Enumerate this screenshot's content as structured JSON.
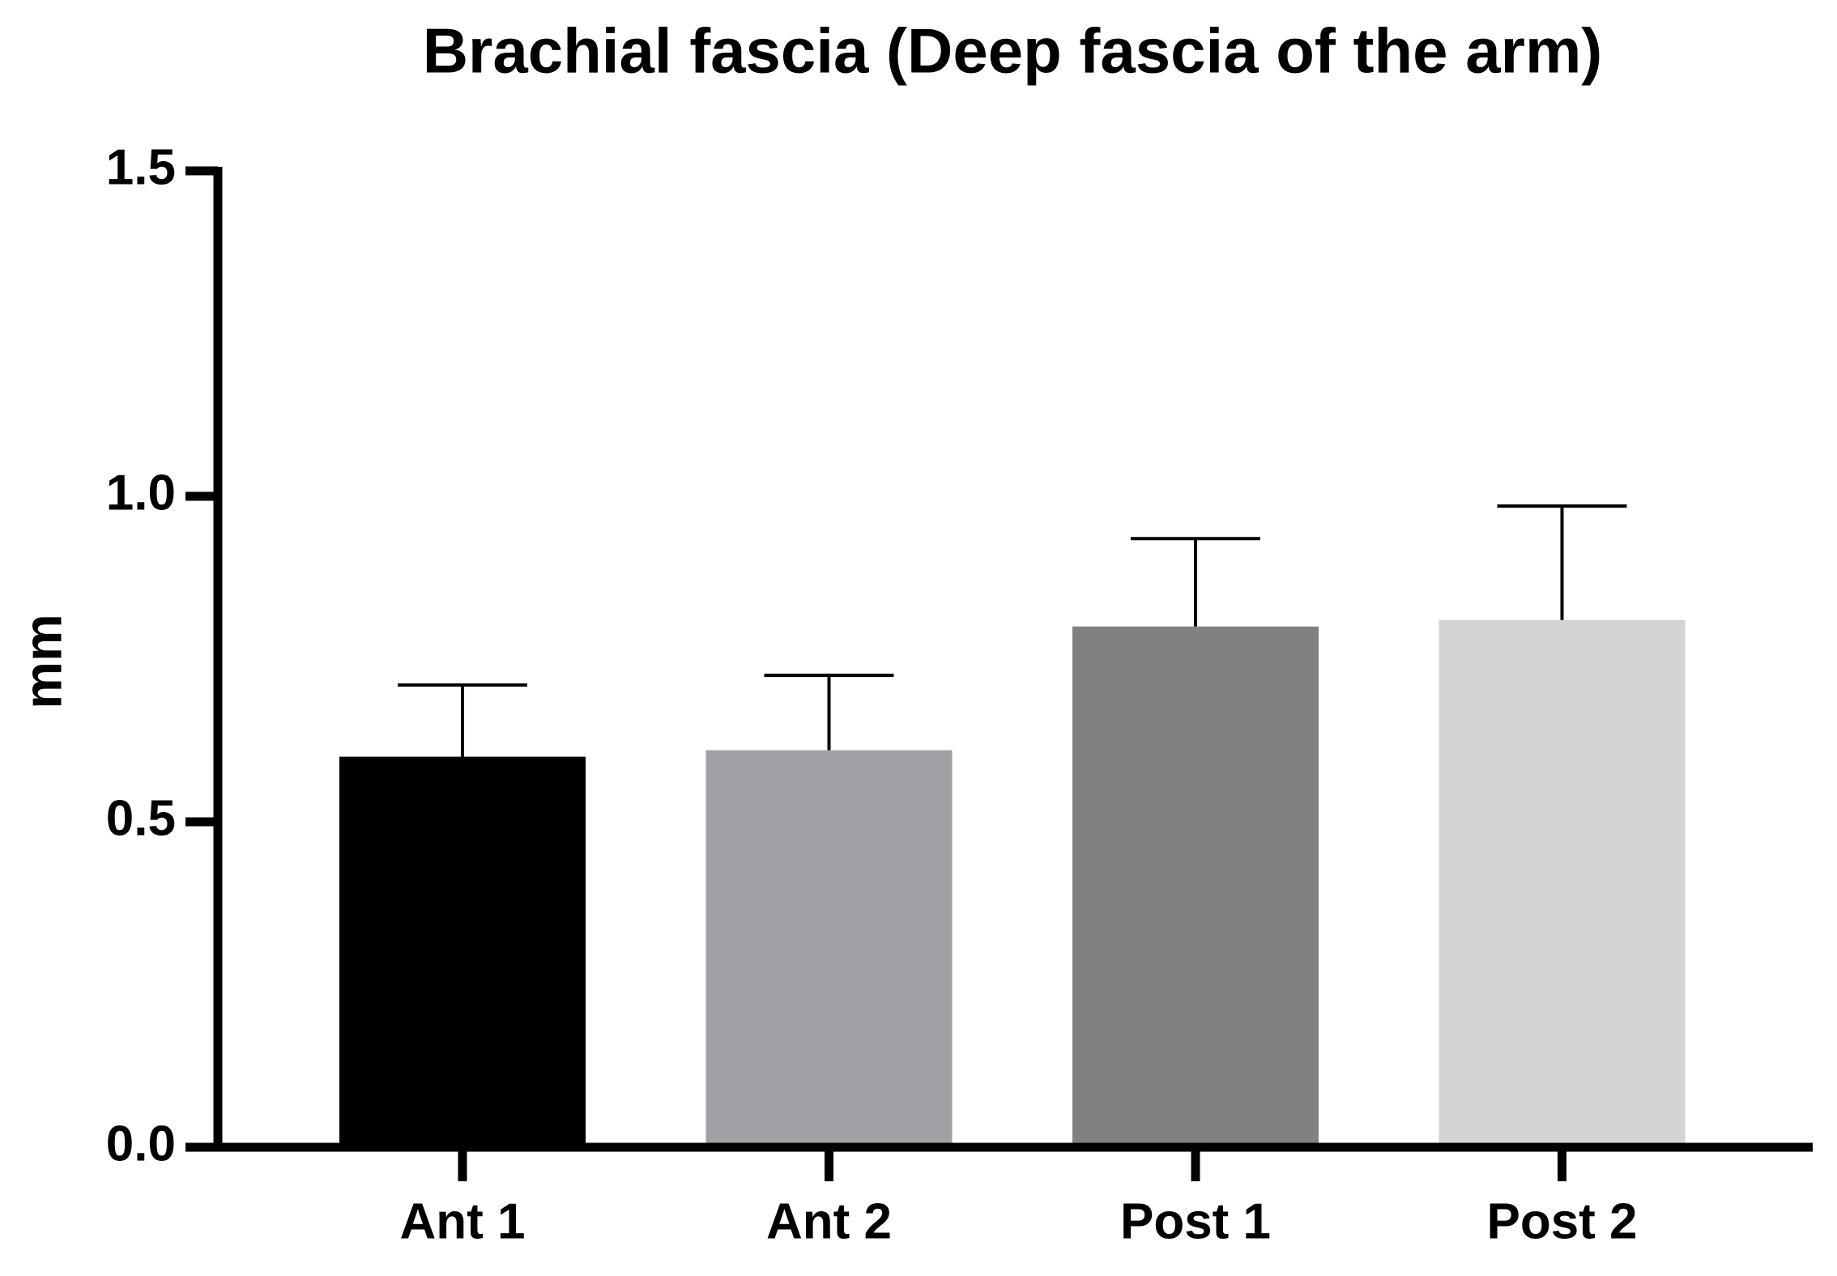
{
  "chart_data": {
    "type": "bar",
    "title": "Brachial fascia (Deep fascia of the arm)",
    "y_label": "mm",
    "categories": [
      "Ant 1",
      "Ant 2",
      "Post 1",
      "Post 2"
    ],
    "values": [
      0.6,
      0.61,
      0.8,
      0.81
    ],
    "errors": [
      0.11,
      0.115,
      0.135,
      0.175
    ],
    "colors": [
      "#000000",
      "#a1a0a5",
      "#818181",
      "#d4d4d4"
    ],
    "ylim": [
      0,
      1.5
    ],
    "yticks": [
      {
        "value": 0,
        "label": "0.0"
      },
      0.5,
      {
        "value": 1,
        "label": "1.0"
      },
      1.5
    ],
    "grid": false
  }
}
